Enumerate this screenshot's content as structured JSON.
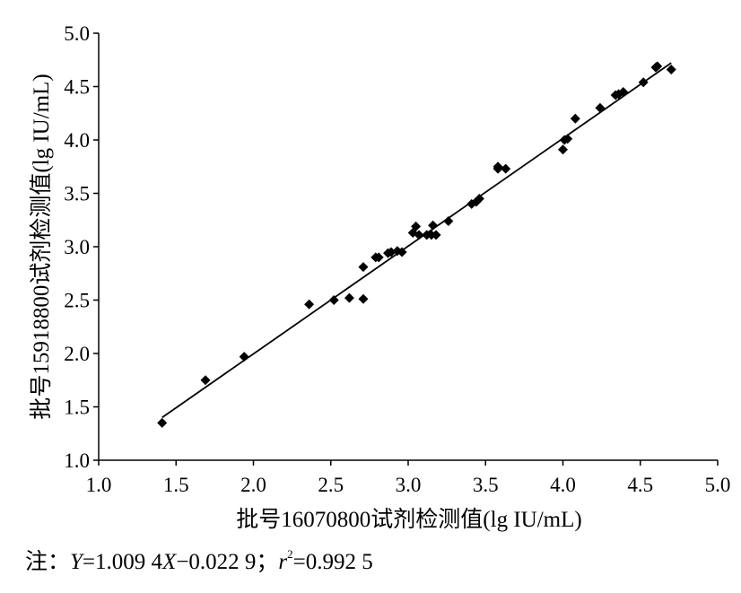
{
  "chart_data": {
    "type": "scatter",
    "xlabel": "批号16070800试剂检测值(lg IU/mL)",
    "ylabel": "批号15918800试剂检测值(lg IU/mL)",
    "xlim": [
      1.0,
      5.0
    ],
    "ylim": [
      1.0,
      5.0
    ],
    "xticks": [
      "1.0",
      "1.5",
      "2.0",
      "2.5",
      "3.0",
      "3.5",
      "4.0",
      "4.5",
      "5.0"
    ],
    "yticks": [
      "1.0",
      "1.5",
      "2.0",
      "2.5",
      "3.0",
      "3.5",
      "4.0",
      "4.5",
      "5.0"
    ],
    "grid": false,
    "legend": false,
    "marker": "diamond",
    "marker_color": "#000000",
    "points": [
      [
        1.41,
        1.35
      ],
      [
        1.69,
        1.75
      ],
      [
        1.94,
        1.97
      ],
      [
        2.36,
        2.46
      ],
      [
        2.52,
        2.5
      ],
      [
        2.62,
        2.52
      ],
      [
        2.71,
        2.51
      ],
      [
        2.71,
        2.81
      ],
      [
        2.79,
        2.9
      ],
      [
        2.81,
        2.9
      ],
      [
        2.87,
        2.94
      ],
      [
        2.89,
        2.95
      ],
      [
        2.93,
        2.96
      ],
      [
        2.96,
        2.95
      ],
      [
        3.03,
        3.13
      ],
      [
        3.05,
        3.19
      ],
      [
        3.07,
        3.11
      ],
      [
        3.12,
        3.11
      ],
      [
        3.15,
        3.11
      ],
      [
        3.16,
        3.2
      ],
      [
        3.18,
        3.11
      ],
      [
        3.26,
        3.24
      ],
      [
        3.41,
        3.4
      ],
      [
        3.44,
        3.42
      ],
      [
        3.46,
        3.45
      ],
      [
        3.58,
        3.75
      ],
      [
        3.58,
        3.73
      ],
      [
        3.63,
        3.73
      ],
      [
        4.0,
        3.91
      ],
      [
        4.01,
        4.0
      ],
      [
        4.03,
        4.01
      ],
      [
        4.08,
        4.2
      ],
      [
        4.24,
        4.3
      ],
      [
        4.34,
        4.42
      ],
      [
        4.36,
        4.43
      ],
      [
        4.39,
        4.45
      ],
      [
        4.52,
        4.54
      ],
      [
        4.6,
        4.68
      ],
      [
        4.61,
        4.69
      ],
      [
        4.7,
        4.66
      ]
    ],
    "fit_line": {
      "slope": 1.0094,
      "intercept": -0.0229,
      "x_range": [
        1.41,
        4.7
      ]
    }
  },
  "note": {
    "prefix": "注：",
    "y_var": "Y",
    "eq_a": "=1.009 4",
    "x_var": "X",
    "eq_b": "−0.022 9；",
    "r_var": "r",
    "r_exp": "2",
    "r_val": "=0.992 5"
  }
}
